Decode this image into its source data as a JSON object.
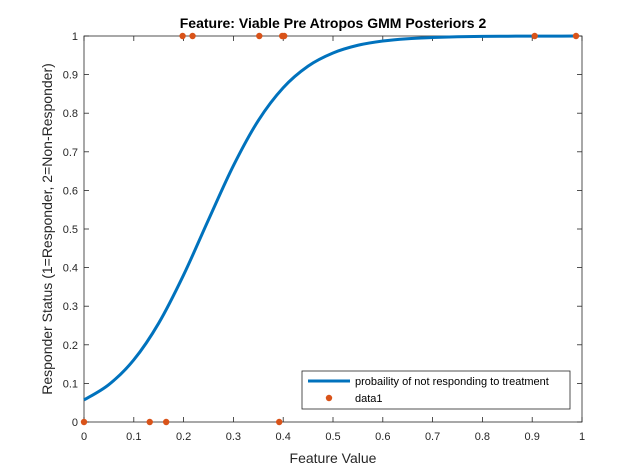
{
  "chart_data": {
    "type": "scatter",
    "title": "Feature: Viable Pre Atropos GMM Posteriors 2",
    "xlabel": "Feature Value",
    "ylabel": "Responder Status (1=Responder, 2=Non-Responder)",
    "xlim": [
      0,
      1
    ],
    "ylim": [
      0,
      1
    ],
    "xticks": [
      "0",
      "0.1",
      "0.2",
      "0.3",
      "0.4",
      "0.5",
      "0.6",
      "0.7",
      "0.8",
      "0.9",
      "1"
    ],
    "yticks": [
      "0",
      "0.1",
      "0.2",
      "0.3",
      "0.4",
      "0.5",
      "0.6",
      "0.7",
      "0.8",
      "0.9",
      "1"
    ],
    "grid": false,
    "legend_position": "bottom-right",
    "series": [
      {
        "name": "probaility of not responding to treatment",
        "kind": "line",
        "color": "#0072BD",
        "x": [
          0,
          0.05,
          0.1,
          0.15,
          0.2,
          0.25,
          0.3,
          0.35,
          0.4,
          0.45,
          0.5,
          0.55,
          0.6,
          0.65,
          0.7,
          0.75,
          0.8,
          0.85,
          0.9,
          0.95,
          0.99
        ],
        "y": [
          0.057,
          0.097,
          0.161,
          0.256,
          0.381,
          0.524,
          0.664,
          0.781,
          0.866,
          0.922,
          0.956,
          0.976,
          0.987,
          0.993,
          0.996,
          0.998,
          0.999,
          0.9994,
          0.9997,
          0.9998,
          0.9999
        ]
      },
      {
        "name": "data1",
        "kind": "scatter",
        "color": "#D95319",
        "x": [
          0,
          0.132,
          0.165,
          0.392,
          0.198,
          0.218,
          0.352,
          0.398,
          0.402,
          0.905,
          0.988
        ],
        "y": [
          0,
          0,
          0,
          0,
          1,
          1,
          1,
          1,
          1,
          1,
          1
        ]
      }
    ]
  }
}
